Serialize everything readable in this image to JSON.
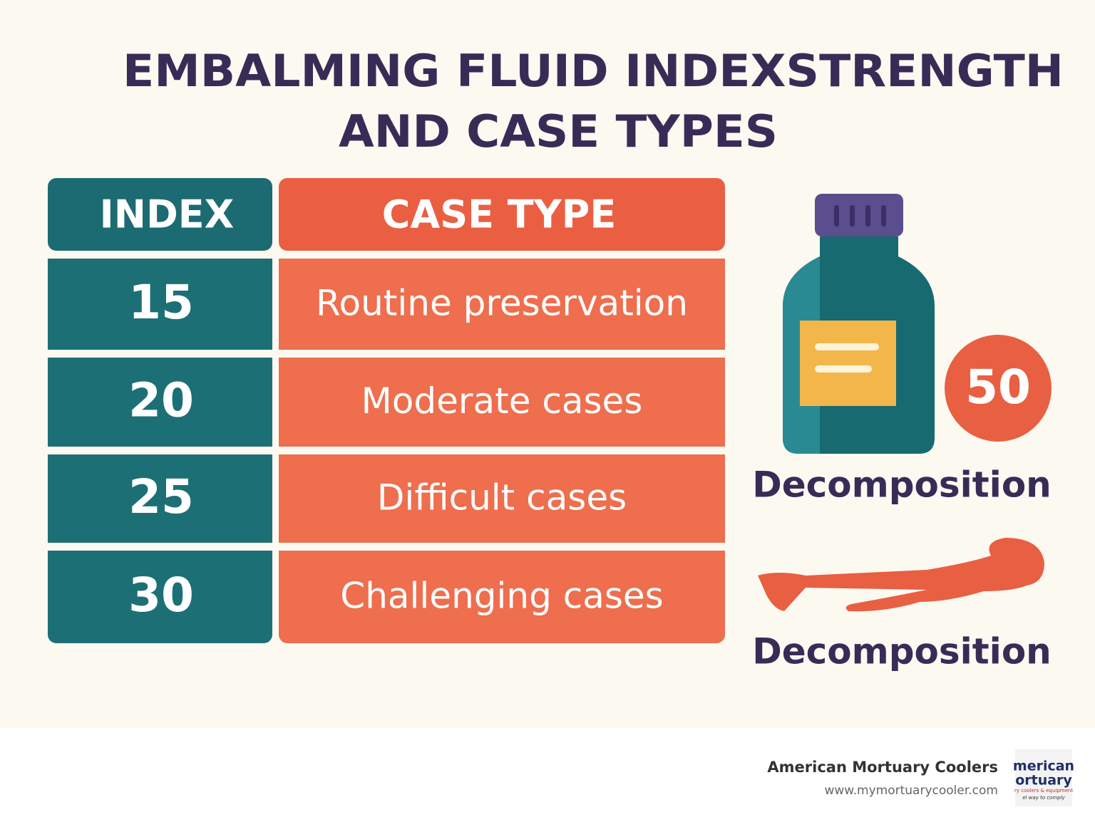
{
  "title_lines": [
    "EMBALMING FLUID INDEXSTRENGTH",
    "AND CASE TYPES"
  ],
  "table": {
    "header": [
      "INDEX",
      "CASE TYPE"
    ],
    "rows": [
      [
        15,
        "Routine preservation"
      ],
      [
        20,
        "Moderate cases"
      ],
      [
        25,
        "Difficult cases"
      ],
      [
        30,
        "Challenging cases"
      ]
    ]
  },
  "side": {
    "badge": 50,
    "labels": [
      "Decomposition",
      "Decomposition"
    ]
  },
  "footer": {
    "brand": "American Mortuary Coolers",
    "url": "www.mymortuarycooler.com",
    "logo_lines": [
      "merican",
      "ortuary",
      "ry coolers & equipment",
      "el way to comply"
    ]
  }
}
